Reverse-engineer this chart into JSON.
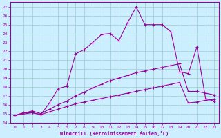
{
  "xlabel": "Windchill (Refroidissement éolien,°C)",
  "xlim": [
    -0.5,
    23.5
  ],
  "ylim": [
    14,
    27.5
  ],
  "xticks": [
    0,
    1,
    2,
    3,
    4,
    5,
    6,
    7,
    8,
    9,
    10,
    11,
    12,
    13,
    14,
    15,
    16,
    17,
    18,
    19,
    20,
    21,
    22,
    23
  ],
  "yticks": [
    14,
    15,
    16,
    17,
    18,
    19,
    20,
    21,
    22,
    23,
    24,
    25,
    26,
    27
  ],
  "background_color": "#cceeff",
  "line_color": "#990099",
  "grid_color": "#99cccc",
  "line1_x": [
    0,
    1,
    2,
    3,
    4,
    5,
    6,
    7,
    8,
    9,
    10,
    11,
    12,
    13,
    14,
    15,
    16,
    17,
    18,
    19,
    20,
    21,
    22,
    23
  ],
  "line1_y": [
    14.8,
    15.1,
    15.1,
    14.9,
    16.2,
    17.8,
    18.1,
    21.7,
    22.2,
    23.0,
    23.9,
    24.0,
    23.2,
    25.2,
    27.0,
    25.0,
    25.0,
    25.0,
    24.2,
    19.7,
    19.5,
    22.5,
    16.7,
    16.4
  ],
  "line2_x": [
    0,
    2,
    3,
    4,
    5,
    6,
    7,
    8,
    9,
    10,
    11,
    12,
    13,
    14,
    15,
    16,
    17,
    18,
    19,
    20,
    21,
    22,
    23
  ],
  "line2_y": [
    14.8,
    15.3,
    15.0,
    15.5,
    16.0,
    16.4,
    17.0,
    17.4,
    17.9,
    18.3,
    18.7,
    19.0,
    19.3,
    19.6,
    19.8,
    20.0,
    20.2,
    20.4,
    20.6,
    17.5,
    17.5,
    17.3,
    17.1
  ],
  "line3_x": [
    0,
    2,
    3,
    4,
    5,
    6,
    7,
    8,
    9,
    10,
    11,
    12,
    13,
    14,
    15,
    16,
    17,
    18,
    19,
    20,
    21,
    22,
    23
  ],
  "line3_y": [
    14.8,
    15.1,
    14.9,
    15.2,
    15.5,
    15.8,
    16.1,
    16.3,
    16.5,
    16.7,
    16.9,
    17.1,
    17.3,
    17.5,
    17.7,
    17.9,
    18.1,
    18.3,
    18.5,
    16.2,
    16.3,
    16.5,
    16.6
  ]
}
